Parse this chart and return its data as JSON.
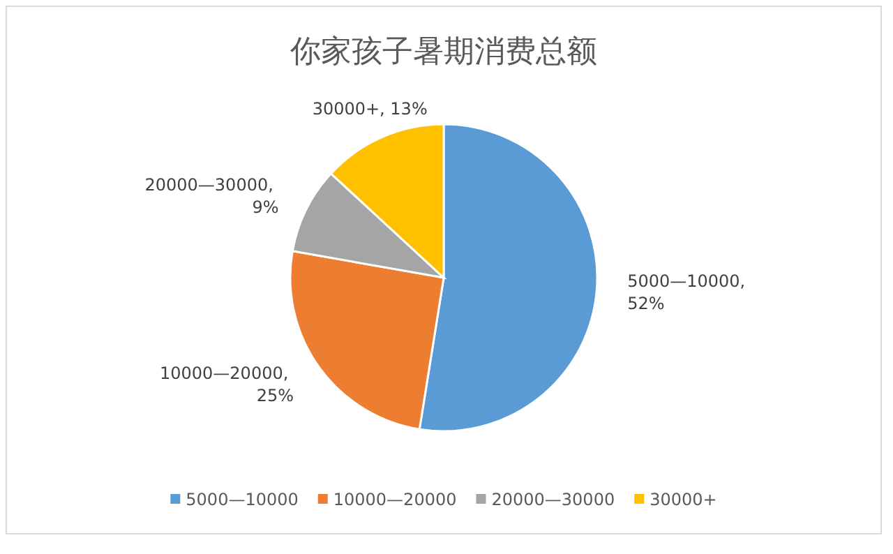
{
  "chart_data": {
    "type": "pie",
    "title": "你家孩子暑期消费总额",
    "categories": [
      "5000—10000",
      "10000—20000",
      "20000—30000",
      "30000+"
    ],
    "values": [
      52,
      25,
      9,
      13
    ],
    "value_labels": [
      "5000—10000, 52%",
      "10000—20000, 25%",
      "20000—30000, 9%",
      "30000+, 13%"
    ],
    "colors": [
      "#5b9bd5",
      "#ed7d31",
      "#a5a5a5",
      "#ffc000"
    ],
    "legend": "bottom"
  }
}
